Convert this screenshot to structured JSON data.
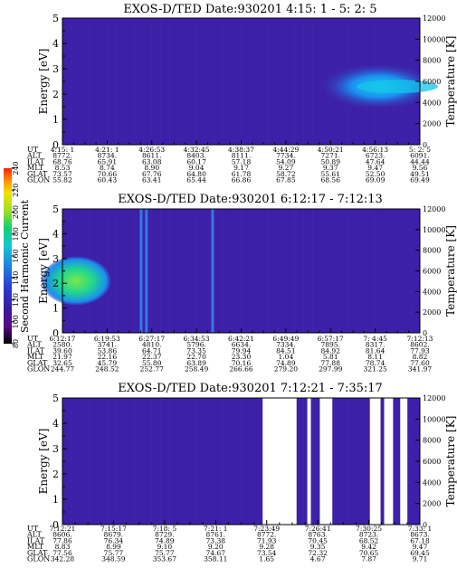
{
  "chart_data": [
    {
      "type": "heatmap",
      "title": "EXOS-D/TED    Date:930201  4:15: 1 - 5: 2: 5",
      "ylabel": "Energy [eV]",
      "y2label": "Temperature [K]",
      "ylim": [
        0,
        5
      ],
      "y2lim": [
        0,
        12000
      ],
      "yticks": [
        "0",
        "1",
        "2",
        "3",
        "4",
        "5"
      ],
      "y2ticks": [
        "0",
        "2000",
        "4000",
        "6000",
        "8000",
        "10000",
        "12000"
      ],
      "description_of_features": [
        "uniform low background",
        "enhanced band centered near 2.3 eV after about 4:50"
      ],
      "band": {
        "center_ev": 2.3,
        "halfwidth_ev": 0.5,
        "start_index": 6
      },
      "table": {
        "labels": [
          "UT",
          "ALT",
          "ILAT",
          "MLT",
          "GLAT",
          "GLON"
        ],
        "columns": [
          [
            "4:15: 1",
            "8772.",
            "68.76",
            "8.53",
            "73.57",
            "55.82"
          ],
          [
            "4:21: 1",
            "8734.",
            "65.91",
            "8.74",
            "70.66",
            "60.43"
          ],
          [
            "4:26:53",
            "8611.",
            "63.08",
            "8.90",
            "67.76",
            "63.41"
          ],
          [
            "4:32:45",
            "8403.",
            "60.17",
            "9.04",
            "64.80",
            "65.44"
          ],
          [
            "4:38:37",
            "8111.",
            "57.18",
            "9.17",
            "61.78",
            "66.86"
          ],
          [
            "4:44:29",
            "7734.",
            "54.09",
            "9.27",
            "58.72",
            "67.85"
          ],
          [
            "4:50:21",
            "7271.",
            "50.89",
            "9.37",
            "55.61",
            "68.56"
          ],
          [
            "4:56:13",
            "6723.",
            "47.64",
            "9.47",
            "52.50",
            "69.09"
          ],
          [
            "5: 2: 5",
            "6091.",
            "44.44",
            "9.56",
            "49.51",
            "69.49"
          ]
        ]
      }
    },
    {
      "type": "heatmap",
      "title": "EXOS-D/TED    Date:930201  6:12:17 - 7:12:13",
      "ylabel": "Energy [eV]",
      "y2label": "Temperature [K]",
      "ylim": [
        0,
        5
      ],
      "y2lim": [
        0,
        12000
      ],
      "yticks": [
        "0",
        "1",
        "2",
        "3",
        "4",
        "5"
      ],
      "y2ticks": [
        "0",
        "2000",
        "4000",
        "6000",
        "8000",
        "10000",
        "12000"
      ],
      "blob": {
        "center_ev": 2.1,
        "halfwidth_ev": 0.7,
        "end_fraction": 0.07
      },
      "streaks_fraction": [
        0.22,
        0.235,
        0.42
      ],
      "table": {
        "labels": [
          "UT",
          "ALT",
          "ILAT",
          "MLT",
          "GLAT",
          "GLON"
        ],
        "columns": [
          [
            "6:12:17",
            "2580.",
            "39.60",
            "21.97",
            "32.65",
            "244.77"
          ],
          [
            "6:19:53",
            "3741.",
            "53.86",
            "22.16",
            "45.79",
            "248.52"
          ],
          [
            "6:27:17",
            "4810.",
            "64.71",
            "22.37",
            "55.80",
            "252.77"
          ],
          [
            "6:34:53",
            "5796.",
            "73.35",
            "22.70",
            "63.89",
            "258.49"
          ],
          [
            "6:42:21",
            "6634.",
            "79.94",
            "23.30",
            "70.16",
            "266.66"
          ],
          [
            "6:49:49",
            "7334.",
            "84.51",
            "1.04",
            "74.89",
            "279.20"
          ],
          [
            "6:57:17",
            "7895.",
            "84.92",
            "5.81",
            "77.88",
            "297.99"
          ],
          [
            "7: 4:45",
            "8317.",
            "81.64",
            "8.11",
            "78.74",
            "321.25"
          ],
          [
            "7:12:13",
            "8602.",
            "77.93",
            "8.82",
            "77.60",
            "341.97"
          ]
        ]
      }
    },
    {
      "type": "heatmap",
      "title": "EXOS-D/TED    Date:930201  7:12:21 - 7:35:17",
      "ylabel": "Energy [eV]",
      "y2label": "Temperature [K]",
      "ylim": [
        0,
        5
      ],
      "y2lim": [
        0,
        12000
      ],
      "yticks": [
        "0",
        "1",
        "2",
        "3",
        "4",
        "5"
      ],
      "y2ticks": [
        "0",
        "2000",
        "4000",
        "6000",
        "8000",
        "10000",
        "12000"
      ],
      "gaps_fraction": [
        [
          0.56,
          0.655
        ],
        [
          0.685,
          0.695
        ],
        [
          0.72,
          0.755
        ],
        [
          0.86,
          0.89
        ],
        [
          0.9,
          0.925
        ],
        [
          0.945,
          0.965
        ]
      ],
      "table": {
        "labels": [
          "UT",
          "ALT",
          "ILAT",
          "MLT",
          "GLAT",
          "GLON"
        ],
        "columns": [
          [
            "7:12:21",
            "8606.",
            "77.86",
            "8.83",
            "77.56",
            "342.28"
          ],
          [
            "7:15:17",
            "8679.",
            "76.34",
            "8.99",
            "75.77",
            "348.59"
          ],
          [
            "7:18: 5",
            "8729.",
            "74.89",
            "9.10",
            "75.77",
            "353.67"
          ],
          [
            "7:21: 1",
            "8761.",
            "73.38",
            "9.20",
            "74.67",
            "358.11"
          ],
          [
            "7:23:49",
            "8772.",
            "71.93",
            "9.28",
            "73.54",
            "1.65"
          ],
          [
            "7:26:41",
            "8763.",
            "70.45",
            "9.35",
            "72.32",
            "4.67"
          ],
          [
            "7:30:25",
            "8723.",
            "68.52",
            "9.42",
            "70.65",
            "7.87"
          ],
          [
            "7:33: 1",
            "8673.",
            "67.18",
            "9.47",
            "69.45",
            "9.71"
          ]
        ]
      }
    }
  ],
  "colorbar": {
    "label": "Second Harmonic Current",
    "ticks": [
      "80",
      "100",
      "120",
      "140",
      "160",
      "180",
      "200",
      "220",
      "240"
    ],
    "colors": [
      "#000000",
      "#5a0a87",
      "#3a1aa0",
      "#2a3dd0",
      "#1f7fe0",
      "#15c8d0",
      "#10d070",
      "#a0e020",
      "#f5e000",
      "#ff9000",
      "#ff2000"
    ]
  },
  "colors": {
    "background": "#3d1fa8",
    "band": "#1b7ee8",
    "band_core": "#16c4e8",
    "blob": "#24d27e",
    "streak": "#2a8bf0"
  }
}
